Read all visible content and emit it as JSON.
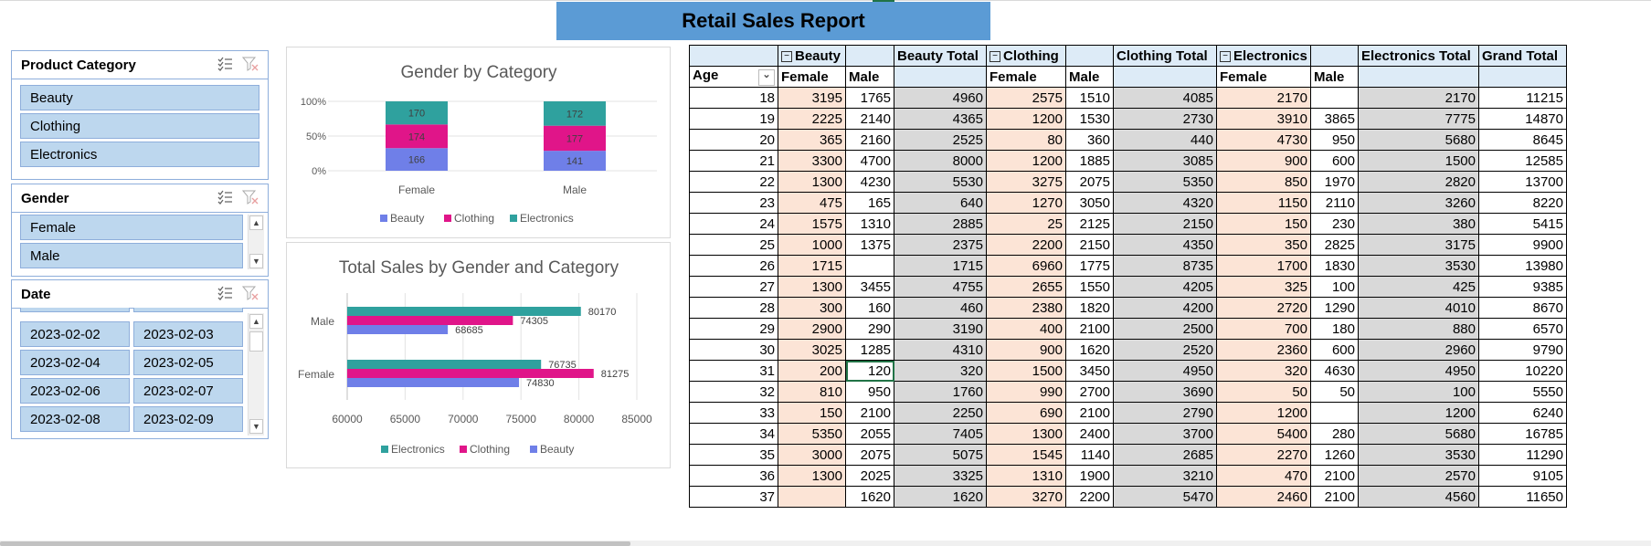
{
  "title": "Retail Sales Report",
  "slicers": {
    "category": {
      "label": "Product Category",
      "items": [
        "Beauty",
        "Clothing",
        "Electronics"
      ]
    },
    "gender": {
      "label": "Gender",
      "items": [
        "Female",
        "Male"
      ]
    },
    "date": {
      "label": "Date",
      "items": [
        "2023-02-02",
        "2023-02-03",
        "2023-02-04",
        "2023-02-05",
        "2023-02-06",
        "2023-02-07",
        "2023-02-08",
        "2023-02-09"
      ]
    }
  },
  "charts": {
    "legend1": [
      "Beauty",
      "Clothing",
      "Electronics"
    ],
    "legend2": [
      "Electronics",
      "Clothing",
      "Beauty"
    ]
  },
  "colors": {
    "beauty": "#6f7fe8",
    "clothing": "#e01589",
    "electronics": "#2fa19e"
  },
  "chart_data": [
    {
      "type": "bar",
      "stacked": "percent",
      "title": "Gender by Category",
      "categories": [
        "Female",
        "Male"
      ],
      "series": [
        {
          "name": "Beauty",
          "values": [
            166,
            141
          ]
        },
        {
          "name": "Clothing",
          "values": [
            174,
            177
          ]
        },
        {
          "name": "Electronics",
          "values": [
            170,
            172
          ]
        }
      ],
      "yticks": [
        "0%",
        "50%",
        "100%"
      ],
      "legend": "bottom"
    },
    {
      "type": "bar",
      "orientation": "horizontal",
      "title": "Total Sales by Gender and Category",
      "categories": [
        "Female",
        "Male"
      ],
      "series": [
        {
          "name": "Beauty",
          "values": [
            74830,
            68685
          ]
        },
        {
          "name": "Clothing",
          "values": [
            81275,
            74305
          ]
        },
        {
          "name": "Electronics",
          "values": [
            76735,
            80170
          ]
        }
      ],
      "xlim": [
        60000,
        85000
      ],
      "xticks": [
        "60000",
        "65000",
        "70000",
        "75000",
        "80000",
        "85000"
      ],
      "legend": "bottom"
    }
  ],
  "pivot": {
    "groups": [
      "Beauty",
      "Beauty Total",
      "Clothing",
      "Clothing Total",
      "Electronics",
      "Electronics Total",
      "Grand Total"
    ],
    "subheaders": {
      "age": "Age",
      "female": "Female",
      "male": "Male"
    },
    "rows": [
      [
        "18",
        "3195",
        "1765",
        "4960",
        "2575",
        "1510",
        "4085",
        "2170",
        "",
        "2170",
        "11215"
      ],
      [
        "19",
        "2225",
        "2140",
        "4365",
        "1200",
        "1530",
        "2730",
        "3910",
        "3865",
        "7775",
        "14870"
      ],
      [
        "20",
        "365",
        "2160",
        "2525",
        "80",
        "360",
        "440",
        "4730",
        "950",
        "5680",
        "8645"
      ],
      [
        "21",
        "3300",
        "4700",
        "8000",
        "1200",
        "1885",
        "3085",
        "900",
        "600",
        "1500",
        "12585"
      ],
      [
        "22",
        "1300",
        "4230",
        "5530",
        "3275",
        "2075",
        "5350",
        "850",
        "1970",
        "2820",
        "13700"
      ],
      [
        "23",
        "475",
        "165",
        "640",
        "1270",
        "3050",
        "4320",
        "1150",
        "2110",
        "3260",
        "8220"
      ],
      [
        "24",
        "1575",
        "1310",
        "2885",
        "25",
        "2125",
        "2150",
        "150",
        "230",
        "380",
        "5415"
      ],
      [
        "25",
        "1000",
        "1375",
        "2375",
        "2200",
        "2150",
        "4350",
        "350",
        "2825",
        "3175",
        "9900"
      ],
      [
        "26",
        "1715",
        "",
        "1715",
        "6960",
        "1775",
        "8735",
        "1700",
        "1830",
        "3530",
        "13980"
      ],
      [
        "27",
        "1300",
        "3455",
        "4755",
        "2655",
        "1550",
        "4205",
        "325",
        "100",
        "425",
        "9385"
      ],
      [
        "28",
        "300",
        "160",
        "460",
        "2380",
        "1820",
        "4200",
        "2720",
        "1290",
        "4010",
        "8670"
      ],
      [
        "29",
        "2900",
        "290",
        "3190",
        "400",
        "2100",
        "2500",
        "700",
        "180",
        "880",
        "6570"
      ],
      [
        "30",
        "3025",
        "1285",
        "4310",
        "900",
        "1620",
        "2520",
        "2360",
        "600",
        "2960",
        "9790"
      ],
      [
        "31",
        "200",
        "120",
        "320",
        "1500",
        "3450",
        "4950",
        "320",
        "4630",
        "4950",
        "10220"
      ],
      [
        "32",
        "810",
        "950",
        "1760",
        "990",
        "2700",
        "3690",
        "50",
        "50",
        "100",
        "5550"
      ],
      [
        "33",
        "150",
        "2100",
        "2250",
        "690",
        "2100",
        "2790",
        "1200",
        "",
        "1200",
        "6240"
      ],
      [
        "34",
        "5350",
        "2055",
        "7405",
        "1300",
        "2400",
        "3700",
        "5400",
        "280",
        "5680",
        "16785"
      ],
      [
        "35",
        "3000",
        "2075",
        "5075",
        "1545",
        "1140",
        "2685",
        "2270",
        "1260",
        "3530",
        "11290"
      ],
      [
        "36",
        "1300",
        "2025",
        "3325",
        "1310",
        "1900",
        "3210",
        "470",
        "2100",
        "2570",
        "9105"
      ],
      [
        "37",
        "",
        "1620",
        "1620",
        "3270",
        "2200",
        "5470",
        "2460",
        "2100",
        "4560",
        "11650"
      ]
    ]
  }
}
